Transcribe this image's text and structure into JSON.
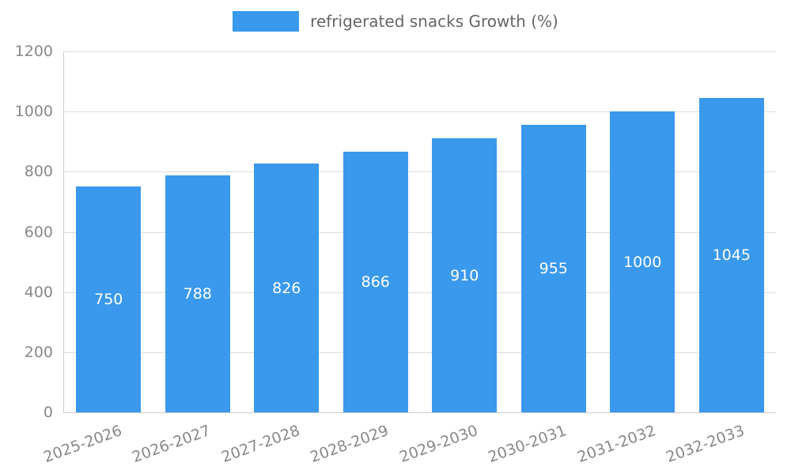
{
  "legend": {
    "label": "refrigerated snacks Growth (%)"
  },
  "colors": {
    "bar": "#3a99ec",
    "grid": "#dddddd",
    "axis": "#cccccc",
    "tick_text": "#888888",
    "legend_text": "#666666",
    "bar_label_text": "#ffffff"
  },
  "chart_data": {
    "type": "bar",
    "title": "refrigerated snacks Growth (%)",
    "categories": [
      "2025-2026",
      "2026-2027",
      "2027-2028",
      "2028-2029",
      "2029-2030",
      "2030-2031",
      "2031-2032",
      "2032-2033"
    ],
    "values": [
      750,
      788,
      826,
      866,
      910,
      955,
      1000,
      1045
    ],
    "xlabel": "",
    "ylabel": "",
    "ylim": [
      0,
      1200
    ],
    "yticks": [
      0,
      200,
      400,
      600,
      800,
      1000,
      1200
    ],
    "grid": true,
    "legend_position": "top",
    "bar_value_labels_shown": true
  }
}
